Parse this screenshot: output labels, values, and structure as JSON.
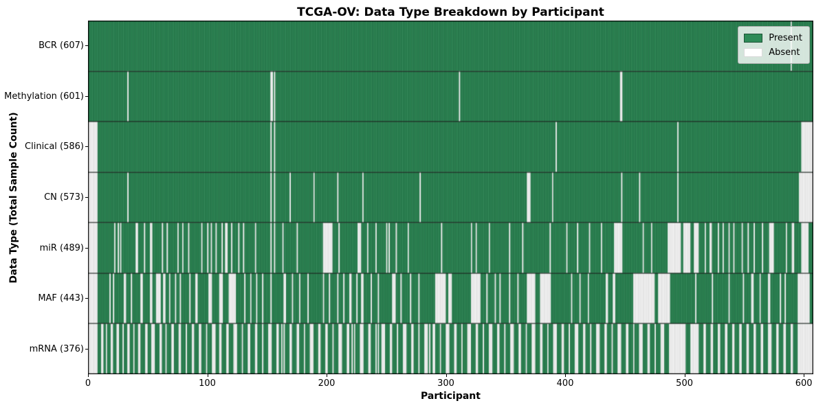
{
  "figure": {
    "title": "TCGA-OV: Data Type Breakdown by Participant",
    "xlabel": "Participant",
    "ylabel": "Data Type (Total Sample Count)"
  },
  "legend": {
    "present_label": "Present",
    "absent_label": "Absent",
    "present_color": "#2e8b57",
    "present_edge": "#1b5234",
    "absent_color": "#ffffff",
    "absent_edge": "#bdbdbd"
  },
  "chart_data": {
    "type": "heatmap",
    "title": "TCGA-OV: Data Type Breakdown by Participant",
    "xlabel": "Participant",
    "ylabel": "Data Type (Total Sample Count)",
    "legend_position": "upper right",
    "legend_entries": [
      "Present",
      "Absent"
    ],
    "grid": "row-separators",
    "n_participants": 608,
    "xlim": [
      0,
      608
    ],
    "x_ticks": [
      0,
      100,
      200,
      300,
      400,
      500,
      600
    ],
    "colors": {
      "present": "#2e8b57",
      "present_edge": "#1b5234",
      "absent": "#ffffff",
      "absent_edge": "#bdbdbd",
      "separator": "#111111"
    },
    "rows": [
      {
        "label": "BCR (607)",
        "name": "BCR",
        "count": 607,
        "absent_ranges": [
          [
            589,
            589
          ]
        ]
      },
      {
        "label": "Methylation (601)",
        "name": "Methylation",
        "count": 601,
        "absent_ranges": [
          [
            33,
            33
          ],
          [
            153,
            154
          ],
          [
            156,
            156
          ],
          [
            311,
            311
          ],
          [
            446,
            447
          ]
        ]
      },
      {
        "label": "Clinical (586)",
        "name": "Clinical",
        "count": 586,
        "absent_ranges": [
          [
            0,
            7
          ],
          [
            153,
            153
          ],
          [
            156,
            156
          ],
          [
            392,
            392
          ],
          [
            494,
            494
          ],
          [
            598,
            607
          ]
        ]
      },
      {
        "label": "CN (573)",
        "name": "CN",
        "count": 573,
        "absent_ranges": [
          [
            0,
            7
          ],
          [
            33,
            33
          ],
          [
            153,
            153
          ],
          [
            156,
            156
          ],
          [
            169,
            169
          ],
          [
            189,
            189
          ],
          [
            209,
            209
          ],
          [
            230,
            230
          ],
          [
            278,
            278
          ],
          [
            368,
            370
          ],
          [
            389,
            389
          ],
          [
            447,
            447
          ],
          [
            462,
            462
          ],
          [
            494,
            494
          ],
          [
            596,
            607
          ]
        ]
      },
      {
        "label": "miR (489)",
        "name": "miR",
        "count": 489,
        "absent_ranges": [
          [
            0,
            7
          ],
          [
            22,
            22
          ],
          [
            25,
            25
          ],
          [
            27,
            27
          ],
          [
            40,
            41
          ],
          [
            47,
            47
          ],
          [
            52,
            53
          ],
          [
            62,
            62
          ],
          [
            66,
            66
          ],
          [
            75,
            75
          ],
          [
            79,
            79
          ],
          [
            84,
            84
          ],
          [
            95,
            95
          ],
          [
            100,
            100
          ],
          [
            103,
            103
          ],
          [
            107,
            107
          ],
          [
            112,
            112
          ],
          [
            115,
            116
          ],
          [
            120,
            120
          ],
          [
            126,
            126
          ],
          [
            130,
            130
          ],
          [
            140,
            140
          ],
          [
            153,
            153
          ],
          [
            156,
            156
          ],
          [
            163,
            163
          ],
          [
            175,
            175
          ],
          [
            197,
            204
          ],
          [
            210,
            210
          ],
          [
            226,
            228
          ],
          [
            234,
            234
          ],
          [
            241,
            241
          ],
          [
            250,
            250
          ],
          [
            252,
            252
          ],
          [
            258,
            258
          ],
          [
            268,
            268
          ],
          [
            296,
            296
          ],
          [
            321,
            321
          ],
          [
            325,
            325
          ],
          [
            336,
            336
          ],
          [
            353,
            353
          ],
          [
            364,
            364
          ],
          [
            387,
            387
          ],
          [
            401,
            401
          ],
          [
            410,
            410
          ],
          [
            420,
            420
          ],
          [
            430,
            430
          ],
          [
            441,
            447
          ],
          [
            465,
            465
          ],
          [
            472,
            472
          ],
          [
            486,
            496
          ],
          [
            499,
            504
          ],
          [
            508,
            511
          ],
          [
            517,
            517
          ],
          [
            521,
            522
          ],
          [
            528,
            528
          ],
          [
            532,
            532
          ],
          [
            537,
            537
          ],
          [
            541,
            541
          ],
          [
            548,
            548
          ],
          [
            553,
            553
          ],
          [
            558,
            558
          ],
          [
            565,
            565
          ],
          [
            571,
            574
          ],
          [
            585,
            585
          ],
          [
            590,
            591
          ],
          [
            598,
            603
          ]
        ]
      },
      {
        "label": "MAF (443)",
        "name": "MAF",
        "count": 443,
        "absent_ranges": [
          [
            0,
            7
          ],
          [
            18,
            18
          ],
          [
            21,
            21
          ],
          [
            30,
            31
          ],
          [
            36,
            36
          ],
          [
            44,
            45
          ],
          [
            52,
            53
          ],
          [
            57,
            60
          ],
          [
            63,
            64
          ],
          [
            68,
            68
          ],
          [
            73,
            73
          ],
          [
            77,
            77
          ],
          [
            85,
            85
          ],
          [
            90,
            91
          ],
          [
            101,
            103
          ],
          [
            110,
            112
          ],
          [
            118,
            123
          ],
          [
            131,
            131
          ],
          [
            136,
            136
          ],
          [
            141,
            141
          ],
          [
            146,
            146
          ],
          [
            153,
            153
          ],
          [
            164,
            165
          ],
          [
            171,
            171
          ],
          [
            177,
            177
          ],
          [
            184,
            184
          ],
          [
            197,
            197
          ],
          [
            202,
            202
          ],
          [
            209,
            209
          ],
          [
            214,
            214
          ],
          [
            219,
            220
          ],
          [
            225,
            225
          ],
          [
            229,
            230
          ],
          [
            237,
            237
          ],
          [
            243,
            243
          ],
          [
            255,
            257
          ],
          [
            262,
            262
          ],
          [
            270,
            270
          ],
          [
            277,
            277
          ],
          [
            291,
            299
          ],
          [
            302,
            304
          ],
          [
            321,
            328
          ],
          [
            334,
            334
          ],
          [
            341,
            341
          ],
          [
            345,
            345
          ],
          [
            353,
            353
          ],
          [
            360,
            360
          ],
          [
            368,
            374
          ],
          [
            379,
            387
          ],
          [
            405,
            405
          ],
          [
            412,
            412
          ],
          [
            419,
            419
          ],
          [
            434,
            435
          ],
          [
            440,
            441
          ],
          [
            457,
            474
          ],
          [
            478,
            487
          ],
          [
            509,
            509
          ],
          [
            523,
            523
          ],
          [
            537,
            537
          ],
          [
            549,
            549
          ],
          [
            556,
            557
          ],
          [
            563,
            563
          ],
          [
            570,
            571
          ],
          [
            580,
            580
          ],
          [
            584,
            584
          ],
          [
            595,
            604
          ]
        ]
      },
      {
        "label": "mRNA (376)",
        "name": "mRNA",
        "count": 376,
        "absent_ranges": [
          [
            0,
            7
          ],
          [
            11,
            12
          ],
          [
            15,
            15
          ],
          [
            19,
            20
          ],
          [
            24,
            25
          ],
          [
            29,
            29
          ],
          [
            33,
            34
          ],
          [
            38,
            38
          ],
          [
            42,
            43
          ],
          [
            48,
            49
          ],
          [
            53,
            55
          ],
          [
            60,
            61
          ],
          [
            65,
            65
          ],
          [
            70,
            71
          ],
          [
            76,
            77
          ],
          [
            82,
            82
          ],
          [
            87,
            88
          ],
          [
            93,
            94
          ],
          [
            99,
            99
          ],
          [
            104,
            106
          ],
          [
            110,
            111
          ],
          [
            116,
            117
          ],
          [
            122,
            124
          ],
          [
            129,
            129
          ],
          [
            134,
            135
          ],
          [
            140,
            141
          ],
          [
            146,
            146
          ],
          [
            151,
            153
          ],
          [
            158,
            159
          ],
          [
            162,
            162
          ],
          [
            164,
            164
          ],
          [
            169,
            170
          ],
          [
            175,
            176
          ],
          [
            181,
            181
          ],
          [
            186,
            188
          ],
          [
            193,
            194
          ],
          [
            199,
            200
          ],
          [
            205,
            205
          ],
          [
            210,
            212
          ],
          [
            217,
            218
          ],
          [
            221,
            221
          ],
          [
            223,
            223
          ],
          [
            228,
            230
          ],
          [
            235,
            236
          ],
          [
            241,
            241
          ],
          [
            243,
            243
          ],
          [
            246,
            248
          ],
          [
            253,
            254
          ],
          [
            259,
            259
          ],
          [
            264,
            266
          ],
          [
            271,
            272
          ],
          [
            277,
            277
          ],
          [
            282,
            284
          ],
          [
            286,
            286
          ],
          [
            289,
            290
          ],
          [
            295,
            295
          ],
          [
            300,
            302
          ],
          [
            307,
            308
          ],
          [
            313,
            313
          ],
          [
            318,
            320
          ],
          [
            325,
            326
          ],
          [
            331,
            331
          ],
          [
            336,
            338
          ],
          [
            343,
            344
          ],
          [
            349,
            349
          ],
          [
            354,
            356
          ],
          [
            361,
            362
          ],
          [
            367,
            367
          ],
          [
            372,
            374
          ],
          [
            379,
            380
          ],
          [
            385,
            385
          ],
          [
            390,
            392
          ],
          [
            397,
            398
          ],
          [
            403,
            403
          ],
          [
            408,
            410
          ],
          [
            415,
            416
          ],
          [
            421,
            421
          ],
          [
            426,
            428
          ],
          [
            433,
            434
          ],
          [
            439,
            439
          ],
          [
            444,
            446
          ],
          [
            451,
            452
          ],
          [
            457,
            457
          ],
          [
            462,
            464
          ],
          [
            469,
            470
          ],
          [
            475,
            475
          ],
          [
            480,
            482
          ],
          [
            487,
            500
          ],
          [
            505,
            511
          ],
          [
            516,
            517
          ],
          [
            522,
            523
          ],
          [
            528,
            529
          ],
          [
            534,
            535
          ],
          [
            540,
            541
          ],
          [
            546,
            547
          ],
          [
            552,
            553
          ],
          [
            558,
            559
          ],
          [
            564,
            565
          ],
          [
            570,
            572
          ],
          [
            577,
            578
          ],
          [
            583,
            584
          ],
          [
            589,
            590
          ],
          [
            595,
            607
          ]
        ]
      }
    ]
  }
}
